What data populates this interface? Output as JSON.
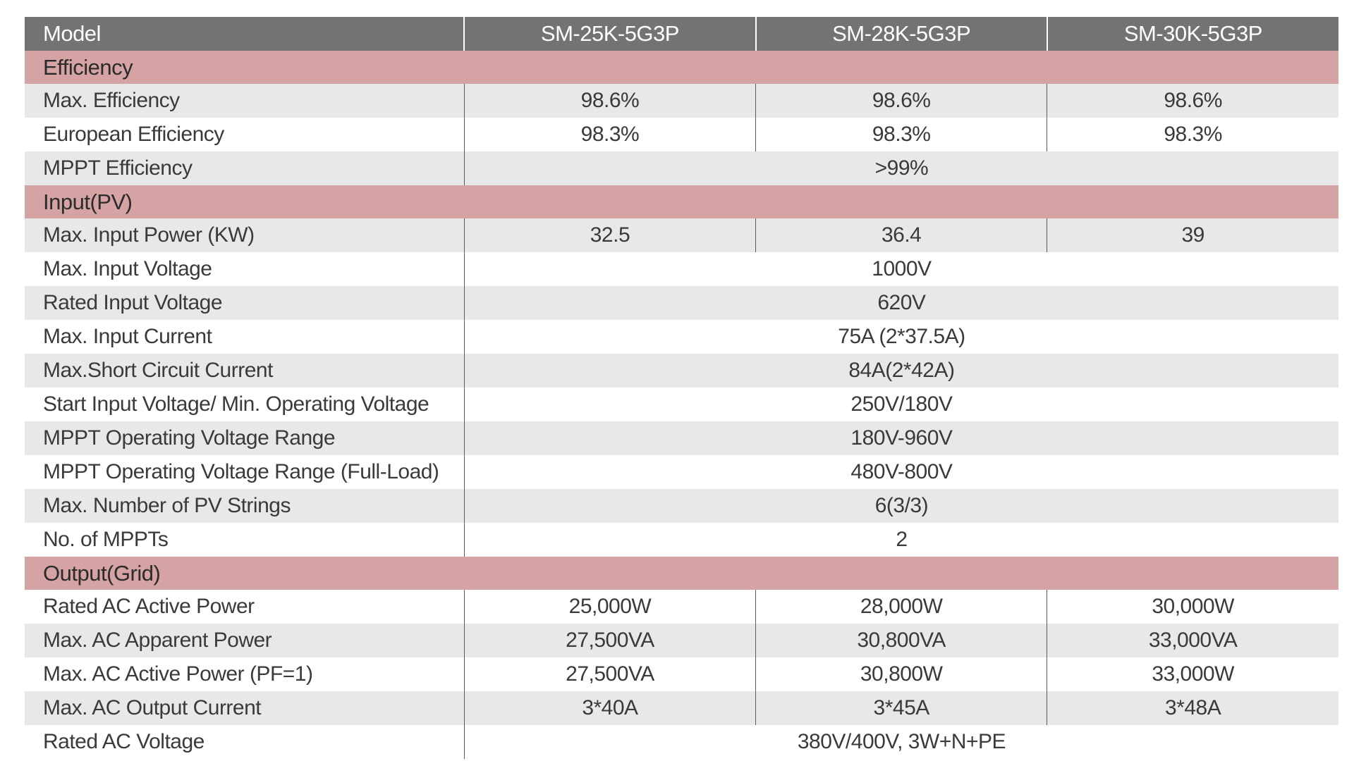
{
  "header": {
    "label": "Model",
    "models": [
      "SM-25K-5G3P",
      "SM-28K-5G3P",
      "SM-30K-5G3P"
    ]
  },
  "sections": {
    "efficiency": {
      "title": "Efficiency",
      "rows": [
        {
          "label": "Max. Efficiency",
          "values": [
            "98.6%",
            "98.6%",
            "98.6%"
          ]
        },
        {
          "label": "European Efficiency",
          "values": [
            "98.3%",
            "98.3%",
            "98.3%"
          ]
        },
        {
          "label": "MPPT Efficiency",
          "value": ">99%"
        }
      ]
    },
    "input": {
      "title": "Input(PV)",
      "rows": [
        {
          "label": "Max. Input Power (KW)",
          "values": [
            "32.5",
            "36.4",
            "39"
          ]
        },
        {
          "label": "Max. Input Voltage",
          "value": "1000V"
        },
        {
          "label": "Rated Input Voltage",
          "value": "620V"
        },
        {
          "label": "Max. Input Current",
          "value": "75A (2*37.5A)"
        },
        {
          "label": "Max.Short Circuit Current",
          "value": "84A(2*42A)"
        },
        {
          "label": "Start Input Voltage/ Min. Operating Voltage",
          "value": "250V/180V"
        },
        {
          "label": "MPPT Operating Voltage Range",
          "value": "180V-960V"
        },
        {
          "label": "MPPT Operating Voltage Range (Full-Load)",
          "value": "480V-800V"
        },
        {
          "label": "Max. Number of PV Strings",
          "value": "6(3/3)"
        },
        {
          "label": "No. of MPPTs",
          "value": "2"
        }
      ]
    },
    "output": {
      "title": "Output(Grid)",
      "rows": [
        {
          "label": "Rated AC Active Power",
          "values": [
            "25,000W",
            "28,000W",
            "30,000W"
          ]
        },
        {
          "label": "Max. AC Apparent Power",
          "values": [
            "27,500VA",
            "30,800VA",
            "33,000VA"
          ]
        },
        {
          "label": "Max. AC Active Power (PF=1)",
          "values": [
            "27,500VA",
            "30,800W",
            "33,000W"
          ]
        },
        {
          "label": "Max. AC Output Current",
          "values": [
            "3*40A",
            "3*45A",
            "3*48A"
          ]
        },
        {
          "label": "Rated AC Voltage",
          "value": "380V/400V, 3W+N+PE"
        }
      ]
    }
  }
}
